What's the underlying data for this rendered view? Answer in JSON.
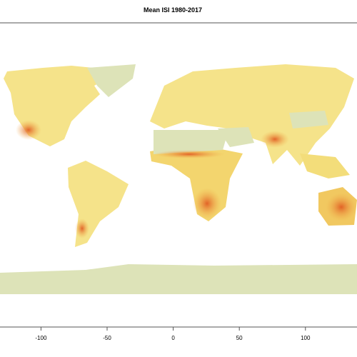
{
  "title": "Mean ISI 1980-2017",
  "x_axis": {
    "xlim": [
      -131,
      139
    ],
    "ticks": [
      -100,
      -50,
      0,
      50,
      100
    ]
  }
}
